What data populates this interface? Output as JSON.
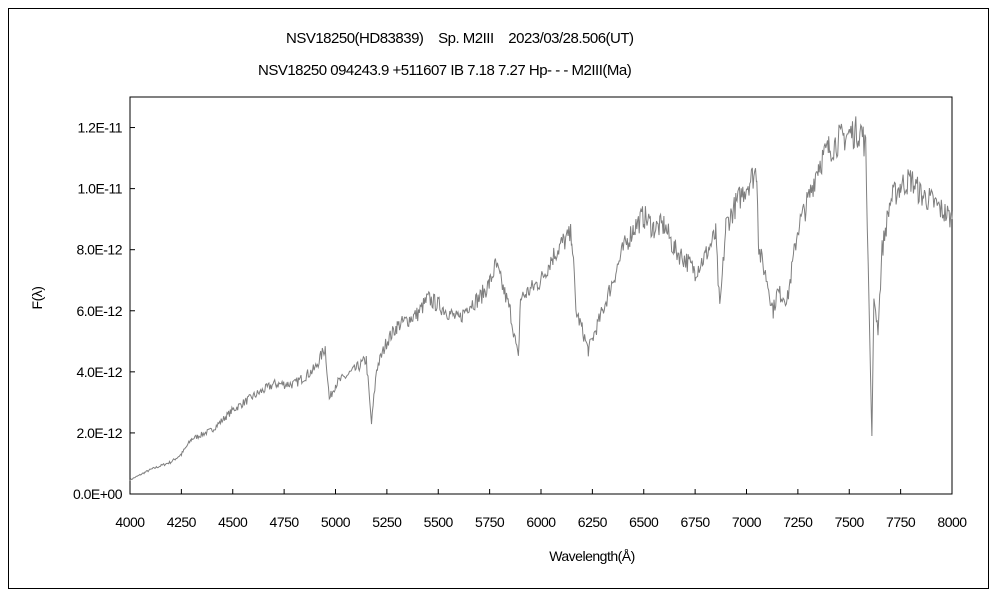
{
  "chart_data": {
    "type": "line",
    "title": "NSV18250(HD83839)    Sp. M2III    2023/03/28.506(UT)",
    "subtitle": "NSV18250 094243.9 +511607 IB 7.18 7.27 Hp- - - M2III(Ma)",
    "xlabel": "Wavelength(Å)",
    "ylabel": "F(λ)",
    "xlim": [
      4000,
      8000
    ],
    "ylim": [
      0,
      1.3e-11
    ],
    "xticks": [
      "4000",
      "4250",
      "4500",
      "4750",
      "5000",
      "5250",
      "5500",
      "5750",
      "6000",
      "6250",
      "6500",
      "6750",
      "7000",
      "7250",
      "7500",
      "7750",
      "8000"
    ],
    "yticks": [
      {
        "value": 0,
        "label": "0.0E+00"
      },
      {
        "value": 2e-12,
        "label": "2.0E-12"
      },
      {
        "value": 4e-12,
        "label": "4.0E-12"
      },
      {
        "value": 6e-12,
        "label": "6.0E-12"
      },
      {
        "value": 8e-12,
        "label": "8.0E-12"
      },
      {
        "value": 1e-11,
        "label": "1.0E-11"
      },
      {
        "value": 1.2e-11,
        "label": "1.2E-11"
      }
    ],
    "grid": false,
    "line_color": "#7f7f7f",
    "series": [
      {
        "x": [
          4000,
          4100,
          4200,
          4250,
          4300,
          4400,
          4500,
          4600,
          4700,
          4800,
          4900,
          4950,
          4970,
          5000,
          5100,
          5150,
          5175,
          5200,
          5250,
          5300,
          5400,
          5450,
          5500,
          5600,
          5650,
          5700,
          5750,
          5780,
          5850,
          5890,
          5900,
          6000,
          6050,
          6100,
          6150,
          6170,
          6200,
          6230,
          6300,
          6400,
          6450,
          6500,
          6550,
          6600,
          6650,
          6700,
          6750,
          6800,
          6850,
          6870,
          6900,
          6950,
          7000,
          7050,
          7060,
          7100,
          7130,
          7150,
          7200,
          7250,
          7300,
          7350,
          7400,
          7450,
          7500,
          7560,
          7580,
          7610,
          7620,
          7640,
          7660,
          7700,
          7750,
          7800,
          7850,
          7900,
          7950,
          8000
        ],
        "y_e12": [
          0.46,
          0.8,
          1.05,
          1.3,
          1.8,
          2.1,
          2.75,
          3.2,
          3.6,
          3.6,
          4.1,
          4.8,
          3.1,
          3.6,
          4.1,
          4.4,
          2.3,
          4.1,
          5.0,
          5.5,
          5.9,
          6.4,
          6.2,
          5.7,
          6.2,
          6.4,
          6.9,
          7.5,
          6.0,
          4.4,
          6.4,
          7.0,
          7.7,
          8.2,
          8.5,
          6.0,
          5.4,
          4.7,
          6.0,
          8.0,
          8.7,
          9.1,
          8.7,
          8.8,
          8.0,
          7.7,
          7.3,
          7.8,
          8.5,
          6.0,
          8.8,
          9.5,
          10.1,
          10.6,
          8.0,
          7.0,
          6.0,
          6.6,
          6.4,
          8.7,
          9.6,
          10.8,
          11.3,
          11.6,
          11.8,
          11.9,
          11.3,
          1.9,
          6.4,
          5.4,
          8.0,
          9.6,
          10.1,
          10.3,
          9.8,
          9.6,
          9.3,
          9.0
        ]
      }
    ]
  }
}
